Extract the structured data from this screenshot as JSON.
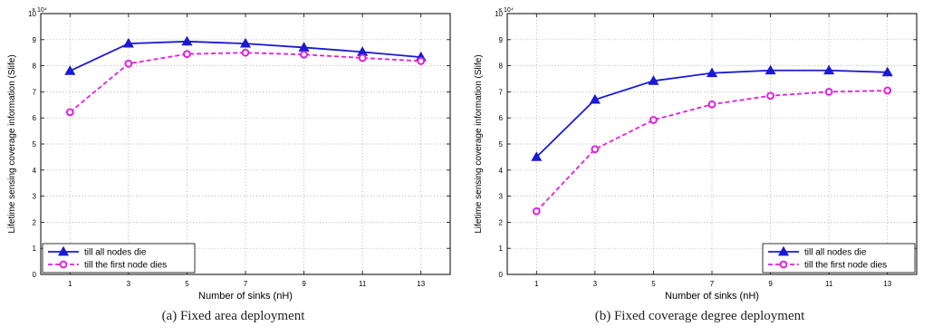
{
  "chart_data": [
    {
      "type": "line",
      "caption": "(a) Fixed area deployment",
      "xlabel": "Number of sinks (nH)",
      "ylabel": "Lifetime sensing coverage information (Slife)",
      "y_multiplier": "× 10⁴",
      "x": [
        1,
        3,
        5,
        7,
        9,
        11,
        13
      ],
      "xlim": [
        0,
        14
      ],
      "ylim": [
        0,
        10
      ],
      "yticks": [
        0,
        1,
        2,
        3,
        4,
        5,
        6,
        7,
        8,
        9,
        10
      ],
      "grid": true,
      "legend_position": "bottom-left",
      "series": [
        {
          "name": "till all nodes die",
          "values": [
            7.8,
            8.85,
            8.93,
            8.85,
            8.7,
            8.53,
            8.33
          ],
          "color": "#1a1ad4",
          "marker": "triangle",
          "dash": "solid"
        },
        {
          "name": "till the first node dies",
          "values": [
            6.22,
            8.08,
            8.45,
            8.5,
            8.43,
            8.3,
            8.18
          ],
          "color": "#e020e0",
          "marker": "circle",
          "dash": "dashed"
        }
      ]
    },
    {
      "type": "line",
      "caption": "(b) Fixed coverage degree deployment",
      "xlabel": "Number of sinks (nH)",
      "ylabel": "Lifetime sensing coverage information (Slife)",
      "y_multiplier": "× 10⁴",
      "x": [
        1,
        3,
        5,
        7,
        9,
        11,
        13
      ],
      "xlim": [
        0,
        14
      ],
      "ylim": [
        0,
        10
      ],
      "yticks": [
        0,
        1,
        2,
        3,
        4,
        5,
        6,
        7,
        8,
        9,
        10
      ],
      "grid": true,
      "legend_position": "bottom-right",
      "series": [
        {
          "name": "till all nodes die",
          "values": [
            4.5,
            6.7,
            7.42,
            7.72,
            7.82,
            7.82,
            7.75
          ],
          "color": "#1a1ad4",
          "marker": "triangle",
          "dash": "solid"
        },
        {
          "name": "till the first node dies",
          "values": [
            2.42,
            4.8,
            5.92,
            6.52,
            6.85,
            7.0,
            7.05
          ],
          "color": "#e020e0",
          "marker": "circle",
          "dash": "dashed"
        }
      ]
    }
  ]
}
